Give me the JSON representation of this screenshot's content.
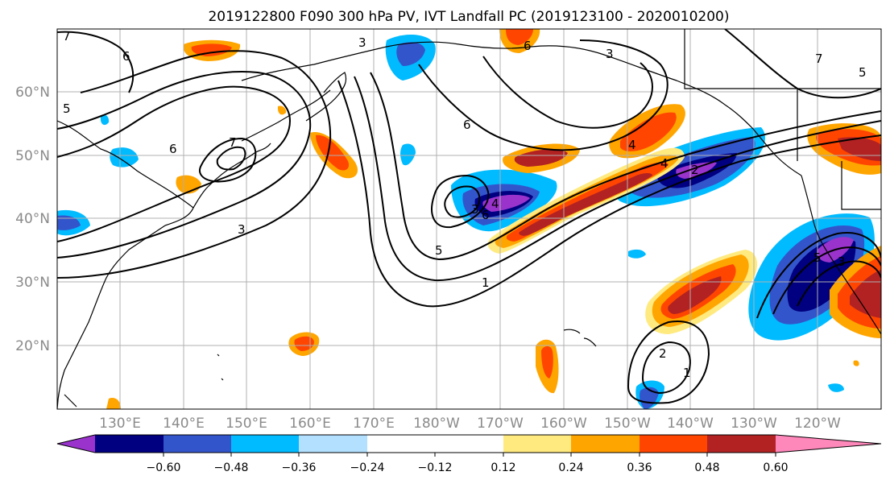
{
  "title": "2019122800 F090 300 hPa PV, IVT Landfall PC (2019123100 - 2020010200)",
  "map": {
    "lat_labels": [
      "20°N",
      "30°N",
      "40°N",
      "50°N",
      "60°N"
    ],
    "lon_labels": [
      "130°E",
      "140°E",
      "150°E",
      "160°E",
      "170°E",
      "180°W",
      "170°W",
      "160°W",
      "150°W",
      "140°W",
      "130°W",
      "120°W"
    ],
    "contour_labels": [
      "6",
      "7",
      "6",
      "5",
      "3",
      "3",
      "7",
      "6",
      "5",
      "3",
      "6",
      "6",
      "4",
      "3",
      "4",
      "2",
      "4",
      "1",
      "2",
      "1",
      "3",
      "5",
      "7",
      "5"
    ],
    "land_color": "#000000",
    "grid_color": "#b0b0b0"
  },
  "colorbar": {
    "ticks": [
      "−0.60",
      "−0.48",
      "−0.36",
      "−0.24",
      "−0.12",
      "0.12",
      "0.24",
      "0.36",
      "0.48",
      "0.60"
    ],
    "colors": [
      "#9933cc",
      "#000080",
      "#3355cc",
      "#00bbff",
      "#b3e0ff",
      "#ffffff",
      "#ffea80",
      "#ffa500",
      "#ff4500",
      "#b22222",
      "#ff88bb"
    ]
  }
}
